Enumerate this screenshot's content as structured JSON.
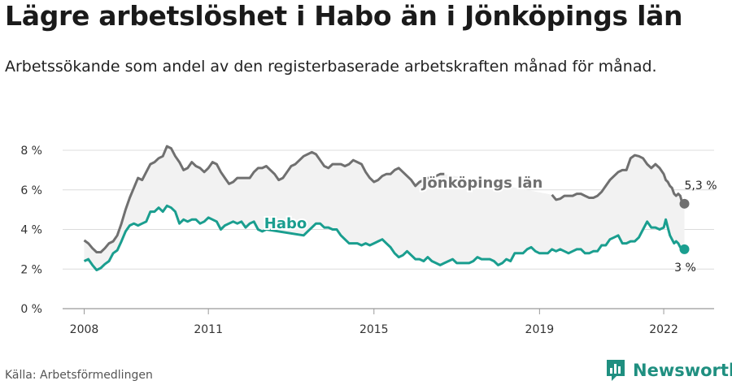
{
  "title": "Lägre arbetslöshet i Habo än i Jönköpings län",
  "subtitle": "Arbetssökande som andel av den registerbaserade arbetskraften månad för månad.",
  "source": "Källa: Arbetsförmedlingen",
  "brand": {
    "name": "Newsworthy",
    "icon": "newsworthy-logo-icon",
    "color": "#1f8f80"
  },
  "chart_data": {
    "type": "line",
    "xlabel": "",
    "ylabel": "",
    "xlim": [
      2008.0,
      2022.5
    ],
    "ylim": [
      0,
      8
    ],
    "y_ticks": [
      0,
      2,
      4,
      6,
      8
    ],
    "y_tick_labels": [
      "0 %",
      "2 %",
      "4 %",
      "6 %",
      "8 %"
    ],
    "x_ticks": [
      2008,
      2011,
      2015,
      2019,
      2022
    ],
    "x_tick_labels": [
      "2008",
      "2011",
      "2015",
      "2019",
      "2022"
    ],
    "grid": true,
    "band_between_series": true,
    "series": [
      {
        "name": "Jönköpings län",
        "color": "#707070",
        "end_label": "5,3 %",
        "points": [
          [
            2008.0,
            3.45
          ],
          [
            2008.1,
            3.3
          ],
          [
            2008.2,
            3.05
          ],
          [
            2008.3,
            2.85
          ],
          [
            2008.4,
            2.85
          ],
          [
            2008.5,
            3.05
          ],
          [
            2008.6,
            3.3
          ],
          [
            2008.7,
            3.4
          ],
          [
            2008.8,
            3.7
          ],
          [
            2008.9,
            4.3
          ],
          [
            2009.0,
            5.0
          ],
          [
            2009.1,
            5.6
          ],
          [
            2009.2,
            6.1
          ],
          [
            2009.3,
            6.6
          ],
          [
            2009.4,
            6.5
          ],
          [
            2009.5,
            6.9
          ],
          [
            2009.6,
            7.3
          ],
          [
            2009.7,
            7.4
          ],
          [
            2009.8,
            7.6
          ],
          [
            2009.9,
            7.7
          ],
          [
            2010.0,
            8.2
          ],
          [
            2010.1,
            8.1
          ],
          [
            2010.2,
            7.7
          ],
          [
            2010.3,
            7.4
          ],
          [
            2010.4,
            7.0
          ],
          [
            2010.5,
            7.1
          ],
          [
            2010.6,
            7.4
          ],
          [
            2010.7,
            7.2
          ],
          [
            2010.8,
            7.1
          ],
          [
            2010.9,
            6.9
          ],
          [
            2011.0,
            7.1
          ],
          [
            2011.1,
            7.4
          ],
          [
            2011.2,
            7.3
          ],
          [
            2011.3,
            6.9
          ],
          [
            2011.4,
            6.6
          ],
          [
            2011.5,
            6.3
          ],
          [
            2011.6,
            6.4
          ],
          [
            2011.7,
            6.6
          ],
          [
            2011.8,
            6.6
          ],
          [
            2011.9,
            6.6
          ],
          [
            2012.0,
            6.6
          ],
          [
            2012.1,
            6.9
          ],
          [
            2012.2,
            7.1
          ],
          [
            2012.3,
            7.1
          ],
          [
            2012.4,
            7.2
          ],
          [
            2012.5,
            7.0
          ],
          [
            2012.6,
            6.8
          ],
          [
            2012.7,
            6.5
          ],
          [
            2012.8,
            6.6
          ],
          [
            2012.9,
            6.9
          ],
          [
            2013.0,
            7.2
          ],
          [
            2013.1,
            7.3
          ],
          [
            2013.2,
            7.5
          ],
          [
            2013.3,
            7.7
          ],
          [
            2013.4,
            7.8
          ],
          [
            2013.5,
            7.9
          ],
          [
            2013.6,
            7.8
          ],
          [
            2013.7,
            7.5
          ],
          [
            2013.8,
            7.2
          ],
          [
            2013.9,
            7.1
          ],
          [
            2014.0,
            7.3
          ],
          [
            2014.1,
            7.3
          ],
          [
            2014.2,
            7.3
          ],
          [
            2014.3,
            7.2
          ],
          [
            2014.4,
            7.3
          ],
          [
            2014.5,
            7.5
          ],
          [
            2014.6,
            7.4
          ],
          [
            2014.7,
            7.3
          ],
          [
            2014.8,
            6.9
          ],
          [
            2014.9,
            6.6
          ],
          [
            2015.0,
            6.4
          ],
          [
            2015.1,
            6.5
          ],
          [
            2015.2,
            6.7
          ],
          [
            2015.3,
            6.8
          ],
          [
            2015.4,
            6.8
          ],
          [
            2015.5,
            7.0
          ],
          [
            2015.6,
            7.1
          ],
          [
            2015.7,
            6.9
          ],
          [
            2015.8,
            6.7
          ],
          [
            2015.9,
            6.5
          ],
          [
            2016.0,
            6.2
          ],
          [
            2016.1,
            6.4
          ],
          [
            2016.2,
            6.5
          ],
          [
            2016.3,
            6.6
          ],
          [
            2016.4,
            6.6
          ],
          [
            2016.5,
            6.7
          ],
          [
            2016.6,
            6.8
          ],
          [
            2016.7,
            6.8
          ]
        ],
        "points_after_gap": [
          [
            2019.3,
            5.75
          ],
          [
            2019.4,
            5.5
          ],
          [
            2019.5,
            5.55
          ],
          [
            2019.6,
            5.7
          ],
          [
            2019.7,
            5.7
          ],
          [
            2019.8,
            5.7
          ],
          [
            2019.9,
            5.8
          ],
          [
            2020.0,
            5.8
          ],
          [
            2020.1,
            5.7
          ],
          [
            2020.2,
            5.6
          ],
          [
            2020.3,
            5.6
          ],
          [
            2020.4,
            5.7
          ],
          [
            2020.5,
            5.9
          ],
          [
            2020.6,
            6.2
          ],
          [
            2020.7,
            6.5
          ],
          [
            2020.8,
            6.7
          ],
          [
            2020.9,
            6.9
          ],
          [
            2021.0,
            7.0
          ],
          [
            2021.1,
            7.0
          ],
          [
            2021.2,
            7.6
          ],
          [
            2021.3,
            7.75
          ],
          [
            2021.4,
            7.7
          ],
          [
            2021.5,
            7.6
          ],
          [
            2021.6,
            7.3
          ],
          [
            2021.7,
            7.1
          ],
          [
            2021.8,
            7.3
          ],
          [
            2021.9,
            7.1
          ],
          [
            2022.0,
            6.8
          ],
          [
            2022.05,
            6.5
          ],
          [
            2022.1,
            6.4
          ],
          [
            2022.15,
            6.2
          ],
          [
            2022.2,
            6.1
          ],
          [
            2022.25,
            5.8
          ],
          [
            2022.3,
            5.7
          ],
          [
            2022.35,
            5.8
          ],
          [
            2022.4,
            5.7
          ],
          [
            2022.45,
            5.3
          ],
          [
            2022.5,
            5.3
          ]
        ],
        "inline_label": "Jönköpings län"
      },
      {
        "name": "Habo",
        "color": "#1a9e8f",
        "end_label": "3 %",
        "points": [
          [
            2008.0,
            2.4
          ],
          [
            2008.1,
            2.5
          ],
          [
            2008.2,
            2.2
          ],
          [
            2008.3,
            1.95
          ],
          [
            2008.4,
            2.05
          ],
          [
            2008.5,
            2.25
          ],
          [
            2008.6,
            2.4
          ],
          [
            2008.7,
            2.8
          ],
          [
            2008.8,
            2.95
          ],
          [
            2008.9,
            3.4
          ],
          [
            2009.0,
            3.9
          ],
          [
            2009.1,
            4.2
          ],
          [
            2009.2,
            4.3
          ],
          [
            2009.3,
            4.2
          ],
          [
            2009.4,
            4.3
          ],
          [
            2009.5,
            4.4
          ],
          [
            2009.6,
            4.9
          ],
          [
            2009.7,
            4.9
          ],
          [
            2009.8,
            5.1
          ],
          [
            2009.9,
            4.9
          ],
          [
            2010.0,
            5.2
          ],
          [
            2010.1,
            5.1
          ],
          [
            2010.2,
            4.9
          ],
          [
            2010.3,
            4.3
          ],
          [
            2010.4,
            4.5
          ],
          [
            2010.5,
            4.4
          ],
          [
            2010.6,
            4.5
          ],
          [
            2010.7,
            4.5
          ],
          [
            2010.8,
            4.3
          ],
          [
            2010.9,
            4.4
          ],
          [
            2011.0,
            4.6
          ],
          [
            2011.1,
            4.5
          ],
          [
            2011.2,
            4.4
          ],
          [
            2011.3,
            4.0
          ],
          [
            2011.4,
            4.2
          ],
          [
            2011.5,
            4.3
          ],
          [
            2011.6,
            4.4
          ],
          [
            2011.7,
            4.3
          ],
          [
            2011.8,
            4.4
          ],
          [
            2011.9,
            4.1
          ],
          [
            2012.0,
            4.3
          ],
          [
            2012.1,
            4.4
          ],
          [
            2012.2,
            4.0
          ],
          [
            2012.3,
            3.9
          ],
          [
            2012.4,
            4.0
          ],
          [
            2013.3,
            3.7
          ],
          [
            2013.4,
            3.9
          ],
          [
            2013.5,
            4.1
          ],
          [
            2013.6,
            4.3
          ],
          [
            2013.7,
            4.3
          ],
          [
            2013.8,
            4.1
          ],
          [
            2013.9,
            4.1
          ],
          [
            2014.0,
            4.0
          ],
          [
            2014.1,
            4.0
          ],
          [
            2014.2,
            3.7
          ],
          [
            2014.3,
            3.5
          ],
          [
            2014.4,
            3.3
          ],
          [
            2014.5,
            3.3
          ],
          [
            2014.6,
            3.3
          ],
          [
            2014.7,
            3.2
          ],
          [
            2014.8,
            3.3
          ],
          [
            2014.9,
            3.2
          ],
          [
            2015.0,
            3.3
          ],
          [
            2015.1,
            3.4
          ],
          [
            2015.2,
            3.5
          ],
          [
            2015.3,
            3.3
          ],
          [
            2015.4,
            3.1
          ],
          [
            2015.5,
            2.8
          ],
          [
            2015.6,
            2.6
          ],
          [
            2015.7,
            2.7
          ],
          [
            2015.8,
            2.9
          ],
          [
            2015.9,
            2.7
          ],
          [
            2016.0,
            2.5
          ],
          [
            2016.1,
            2.5
          ],
          [
            2016.2,
            2.4
          ],
          [
            2016.3,
            2.6
          ],
          [
            2016.4,
            2.4
          ],
          [
            2016.5,
            2.3
          ],
          [
            2016.6,
            2.2
          ],
          [
            2016.7,
            2.3
          ],
          [
            2016.8,
            2.4
          ],
          [
            2016.9,
            2.5
          ],
          [
            2017.0,
            2.3
          ],
          [
            2017.1,
            2.3
          ],
          [
            2017.2,
            2.3
          ],
          [
            2017.3,
            2.3
          ],
          [
            2017.4,
            2.4
          ],
          [
            2017.5,
            2.6
          ],
          [
            2017.6,
            2.5
          ],
          [
            2017.7,
            2.5
          ],
          [
            2017.8,
            2.5
          ],
          [
            2017.9,
            2.4
          ],
          [
            2018.0,
            2.2
          ],
          [
            2018.1,
            2.3
          ],
          [
            2018.2,
            2.5
          ],
          [
            2018.3,
            2.4
          ],
          [
            2018.4,
            2.8
          ],
          [
            2018.5,
            2.8
          ],
          [
            2018.6,
            2.8
          ],
          [
            2018.7,
            3.0
          ],
          [
            2018.8,
            3.1
          ],
          [
            2018.9,
            2.9
          ],
          [
            2019.0,
            2.8
          ],
          [
            2019.1,
            2.8
          ],
          [
            2019.2,
            2.8
          ],
          [
            2019.3,
            3.0
          ],
          [
            2019.4,
            2.9
          ],
          [
            2019.5,
            3.0
          ],
          [
            2019.6,
            2.9
          ],
          [
            2019.7,
            2.8
          ],
          [
            2019.8,
            2.9
          ],
          [
            2019.9,
            3.0
          ],
          [
            2020.0,
            3.0
          ],
          [
            2020.1,
            2.8
          ],
          [
            2020.2,
            2.8
          ],
          [
            2020.3,
            2.9
          ],
          [
            2020.4,
            2.9
          ],
          [
            2020.5,
            3.2
          ],
          [
            2020.6,
            3.2
          ],
          [
            2020.7,
            3.5
          ],
          [
            2020.8,
            3.6
          ],
          [
            2020.9,
            3.7
          ],
          [
            2021.0,
            3.3
          ],
          [
            2021.1,
            3.3
          ],
          [
            2021.2,
            3.4
          ],
          [
            2021.3,
            3.4
          ],
          [
            2021.4,
            3.6
          ],
          [
            2021.5,
            4.0
          ],
          [
            2021.6,
            4.4
          ],
          [
            2021.7,
            4.1
          ],
          [
            2021.8,
            4.1
          ],
          [
            2021.9,
            4.0
          ],
          [
            2022.0,
            4.1
          ],
          [
            2022.05,
            4.5
          ],
          [
            2022.1,
            4.1
          ],
          [
            2022.15,
            3.7
          ],
          [
            2022.2,
            3.5
          ],
          [
            2022.25,
            3.3
          ],
          [
            2022.3,
            3.4
          ],
          [
            2022.35,
            3.3
          ],
          [
            2022.4,
            3.1
          ],
          [
            2022.45,
            3.0
          ],
          [
            2022.5,
            3.0
          ]
        ],
        "inline_label": "Habo"
      }
    ]
  }
}
